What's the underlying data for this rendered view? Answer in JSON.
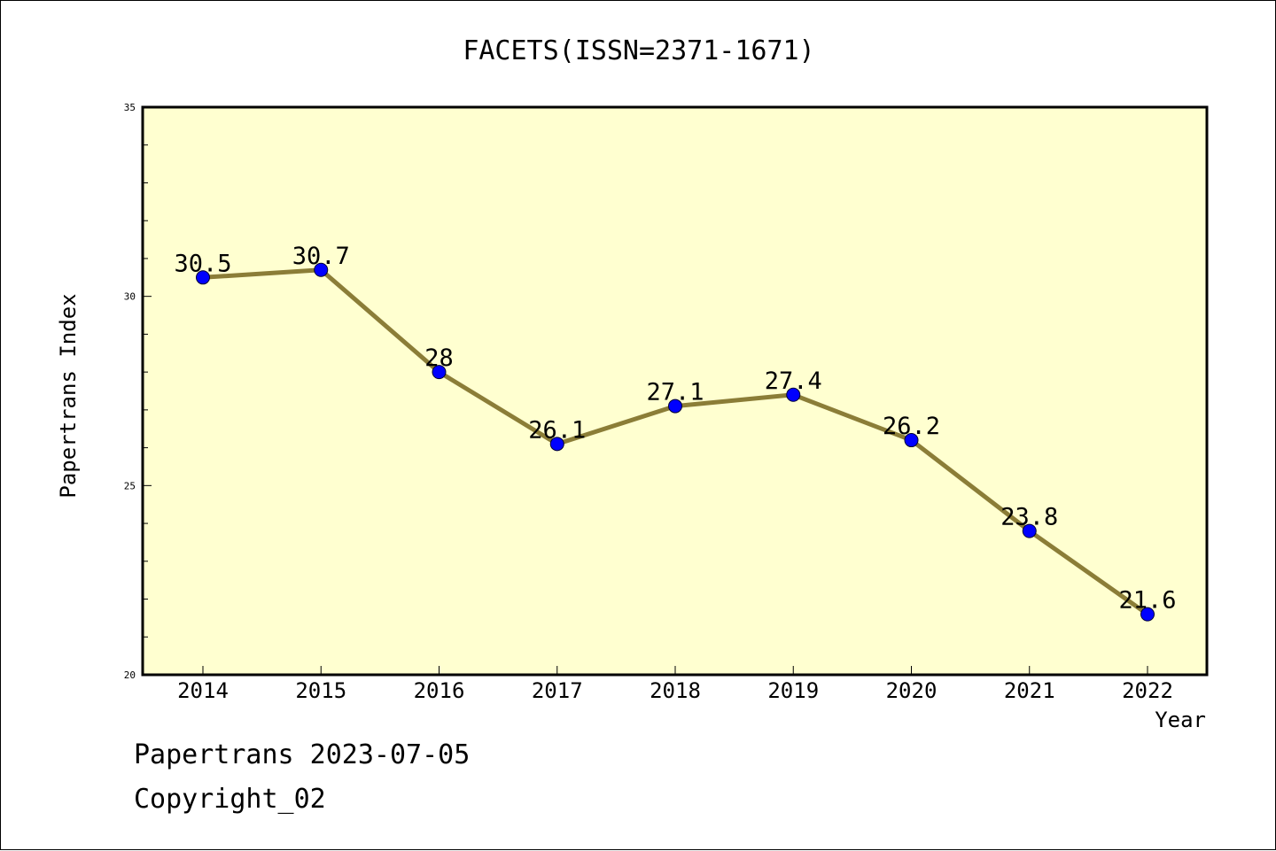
{
  "chart_data": {
    "type": "line",
    "title": "FACETS(ISSN=2371-1671)",
    "xlabel": "Year",
    "ylabel": "Papertrans Index",
    "categories": [
      "2014",
      "2015",
      "2016",
      "2017",
      "2018",
      "2019",
      "2020",
      "2021",
      "2022"
    ],
    "values": [
      30.5,
      30.7,
      28,
      26.1,
      27.1,
      27.4,
      26.2,
      23.8,
      21.6
    ],
    "data_labels": [
      "30.5",
      "30.7",
      "28",
      "26.1",
      "27.1",
      "27.4",
      "26.2",
      "23.8",
      "21.6"
    ],
    "ylim": [
      20,
      35
    ],
    "y_ticks": [
      "20",
      "25",
      "30",
      "35"
    ],
    "grid": false,
    "line_color": "#8B7D37",
    "marker_color": "#0000FF",
    "plot_background": "#FFFFD0"
  },
  "footer": {
    "line1": "Papertrans 2023-07-05",
    "line2": "Copyright_02"
  }
}
